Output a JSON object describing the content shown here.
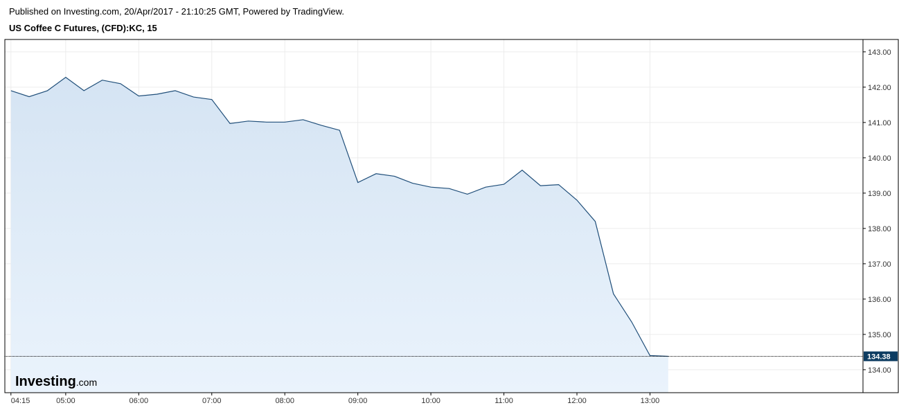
{
  "header": {
    "published": "Published on Investing.com, 20/Apr/2017 - 21:10:25 GMT, Powered by TradingView.",
    "title": "US Coffee C Futures, (CFD):KC, 15"
  },
  "logo": {
    "brand": "Investing",
    "suffix": ".com"
  },
  "chart_data": {
    "type": "area",
    "title": "US Coffee C Futures, (CFD):KC, 15",
    "xlabel": "",
    "ylabel": "",
    "x_ticks": [
      "04:15",
      "05:00",
      "06:00",
      "07:00",
      "08:00",
      "09:00",
      "10:00",
      "11:00",
      "12:00",
      "13:00"
    ],
    "y_ticks": [
      "134.00",
      "135.00",
      "136.00",
      "137.00",
      "138.00",
      "139.00",
      "140.00",
      "141.00",
      "142.00",
      "143.00"
    ],
    "ylim": [
      133.35,
      143.35
    ],
    "xlim": [
      "04:10",
      "15:55"
    ],
    "grid": true,
    "last_price": "134.38",
    "colors": {
      "line": "#1f4e79",
      "fill_top": "#d5e4f3",
      "fill_bottom": "#eaf3fc",
      "label_bg": "#0d3c61",
      "grid": "#ececec"
    },
    "series": [
      {
        "x": [
          "04:15",
          "04:30",
          "04:45",
          "05:00",
          "05:15",
          "05:30",
          "05:45",
          "06:00",
          "06:15",
          "06:30",
          "06:45",
          "07:00",
          "07:15",
          "07:30",
          "07:45",
          "08:00",
          "08:15",
          "08:30",
          "08:45",
          "09:00",
          "09:15",
          "09:30",
          "09:45",
          "10:00",
          "10:15",
          "10:30",
          "10:45",
          "11:00",
          "11:15",
          "11:30",
          "11:45",
          "12:00",
          "12:15",
          "12:30",
          "12:45",
          "13:00",
          "13:15"
        ],
        "values": [
          141.9,
          141.73,
          141.9,
          142.28,
          141.9,
          142.2,
          142.1,
          141.75,
          141.8,
          141.9,
          141.72,
          141.65,
          140.97,
          141.04,
          141.01,
          141.01,
          141.08,
          140.92,
          140.78,
          139.3,
          139.55,
          139.48,
          139.28,
          139.17,
          139.13,
          138.97,
          139.17,
          139.25,
          139.65,
          139.21,
          139.24,
          138.8,
          138.2,
          136.15,
          135.35,
          134.4,
          134.38
        ]
      }
    ]
  }
}
